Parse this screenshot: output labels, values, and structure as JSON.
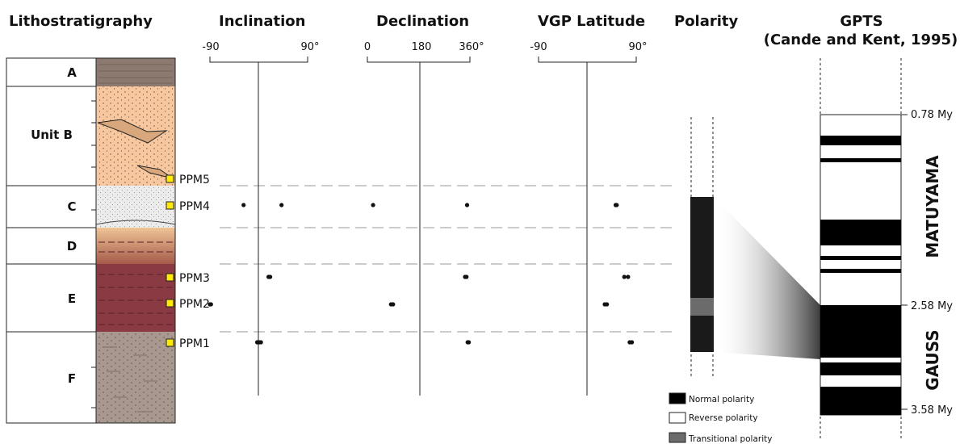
{
  "headers": {
    "lithostratigraphy": "Lithostratigraphy",
    "inclination": "Inclination",
    "declination": "Declination",
    "vgp": "VGP Latitude",
    "polarity": "Polarity",
    "gpts_line1": "GPTS",
    "gpts_line2": "(Cande and Kent, 1995)"
  },
  "units": [
    "A",
    "Unit B",
    "C",
    "D",
    "E",
    "F"
  ],
  "samples": [
    {
      "name": "PPM5",
      "inc": [],
      "dec": [],
      "vgp": []
    },
    {
      "name": "PPM4",
      "inc": [
        -28,
        42
      ],
      "dec": [
        20,
        350
      ],
      "vgp": [
        52,
        54
      ]
    },
    {
      "name": "PPM3",
      "inc": [
        18,
        21
      ],
      "dec": [
        343,
        348
      ],
      "vgp": [
        68,
        75
      ]
    },
    {
      "name": "PPM2",
      "inc": [
        -90,
        -88
      ],
      "dec": [
        83,
        90
      ],
      "vgp": [
        32,
        36
      ]
    },
    {
      "name": "PPM1",
      "inc": [
        -3,
        1,
        4
      ],
      "dec": [
        352,
        356
      ],
      "vgp": [
        78,
        82
      ]
    }
  ],
  "axes": {
    "inclination": {
      "min_label": "-90",
      "max_label": "90°",
      "min": -90,
      "max": 90
    },
    "declination": {
      "min_label": "0",
      "mid_label": "180",
      "max_label": "360°",
      "min": 0,
      "max": 360
    },
    "vgp": {
      "min_label": "-90",
      "max_label": "90°",
      "min": -90,
      "max": 90
    }
  },
  "legend": {
    "normal": "Normal polarity",
    "reverse": "Reverse polarity",
    "transitional": "Transitional polarity"
  },
  "gpts": {
    "ages": [
      "0.78 My",
      "2.58 My",
      "3.58 My"
    ],
    "chrons": [
      "MATUYAMA",
      "GAUSS"
    ]
  },
  "colors": {
    "normal": "#000000",
    "reverse": "#ffffff",
    "transitional": "#6b6b6b",
    "sample_marker": "#ffeb00",
    "unit_a": "#8c7a70",
    "unit_b": "#f7c8a0",
    "unit_c": "#e8e8e8",
    "unit_d": "#e8b88a",
    "unit_e": "#8a3a42",
    "unit_f": "#a8988f"
  }
}
